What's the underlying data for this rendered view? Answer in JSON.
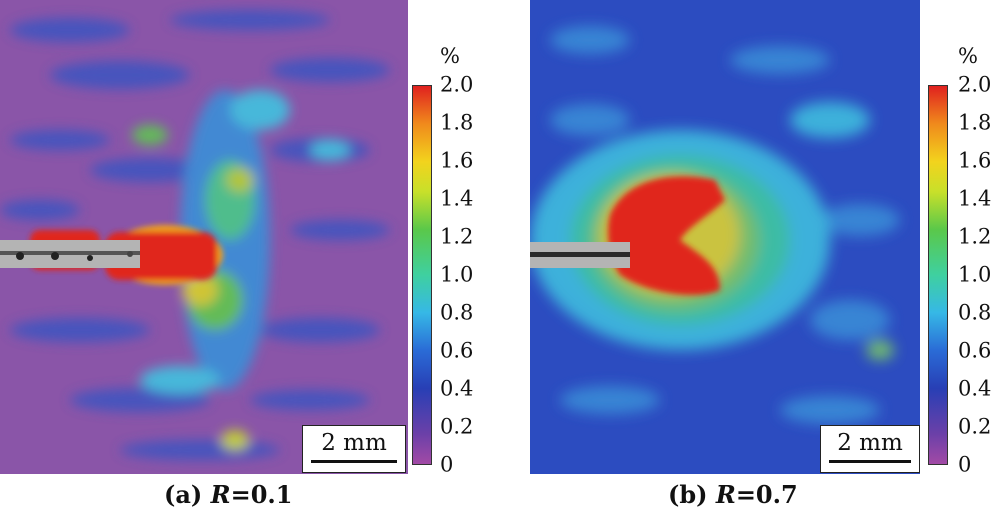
{
  "panels": [
    {
      "caption_prefix": "(a) ",
      "caption_var": "R",
      "caption_value": "=0.1",
      "scale_label": "2 mm",
      "unit": "%",
      "ticks": [
        "2.0",
        "1.8",
        "1.6",
        "1.4",
        "1.2",
        "1.0",
        "0.8",
        "0.6",
        "0.4",
        "0.2",
        "0"
      ],
      "background_color": "#8a55a8",
      "hotspot_color": "#e0251f"
    },
    {
      "caption_prefix": "(b) ",
      "caption_var": "R",
      "caption_value": "=0.7",
      "scale_label": "2 mm",
      "unit": "%",
      "ticks": [
        "2.0",
        "1.8",
        "1.6",
        "1.4",
        "1.2",
        "1.0",
        "0.8",
        "0.6",
        "0.4",
        "0.2",
        "0"
      ],
      "background_color": "#2c4cc0",
      "hotspot_color": "#e0251f"
    }
  ]
}
